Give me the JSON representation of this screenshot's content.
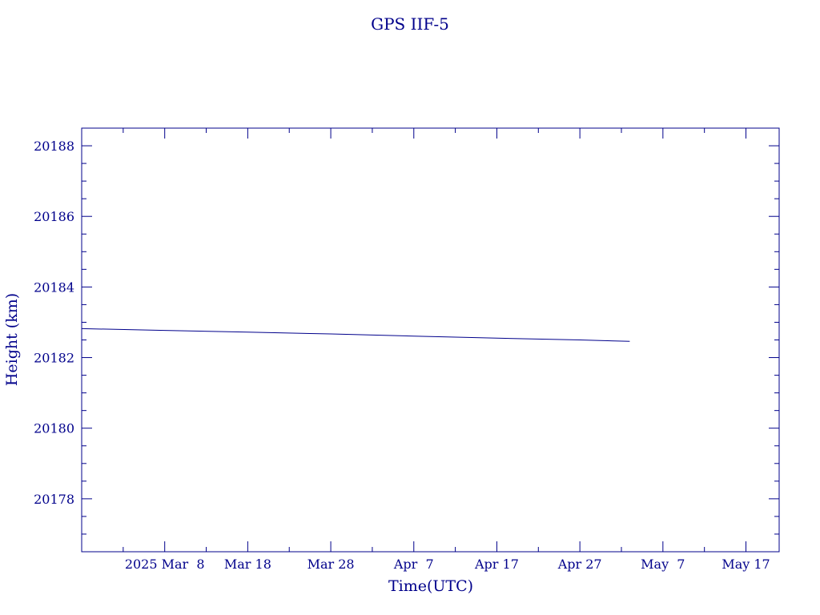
{
  "chart_data": {
    "type": "line",
    "title": "GPS IIF-5",
    "xlabel": "Time(UTC)",
    "ylabel": "Height (km)",
    "color": "#00008b",
    "x_tick_labels": [
      "2025 Mar  8",
      "Mar 18",
      "Mar 28",
      "Apr  7",
      "Apr 17",
      "Apr 27",
      "May  7",
      "May 17"
    ],
    "x_tick_dates": [
      "2025-03-08",
      "2025-03-18",
      "2025-03-28",
      "2025-04-07",
      "2025-04-17",
      "2025-04-27",
      "2025-05-07",
      "2025-05-17"
    ],
    "xlim": [
      "2025-02-26",
      "2025-05-21"
    ],
    "ylim": [
      20176.5,
      20188.5
    ],
    "y_ticks": [
      20178,
      20180,
      20182,
      20184,
      20186,
      20188
    ],
    "y_tick_labels": [
      "20178",
      "20180",
      "20182",
      "20184",
      "20186",
      "20188"
    ],
    "grid": false,
    "series": [
      {
        "x": [
          "2025-02-26",
          "2025-03-08",
          "2025-03-18",
          "2025-03-28",
          "2025-04-07",
          "2025-04-17",
          "2025-04-27",
          "2025-05-03"
        ],
        "values": [
          20182.82,
          20182.77,
          20182.72,
          20182.67,
          20182.61,
          20182.55,
          20182.5,
          20182.46
        ]
      }
    ]
  }
}
